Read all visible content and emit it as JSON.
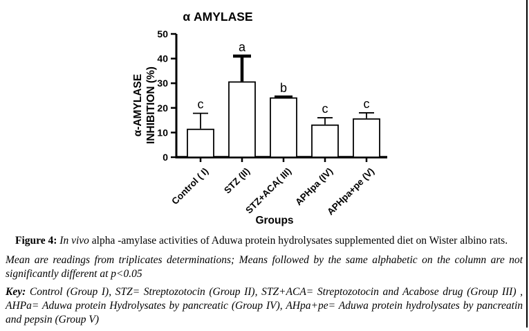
{
  "colors": {
    "background": "#ffffff",
    "axis": "#000000",
    "bar_fill": "#ffffff",
    "bar_stroke": "#000000",
    "text": "#000000"
  },
  "chart_data": {
    "type": "bar",
    "title": "α AMYLASE",
    "xlabel": "Groups",
    "ylabel_line1": "α-AMYLASE",
    "ylabel_line2": "INHIBITION (%)",
    "categories": [
      "Control ( I)",
      "STZ (II)",
      "STZ+ACA( III)",
      "APHpa (IV)",
      "APHpa+pe (V)"
    ],
    "values": [
      11.3,
      30.5,
      24.0,
      13.0,
      15.5
    ],
    "errors_up": [
      6.5,
      10.5,
      0.4,
      3.0,
      2.5
    ],
    "error_thick": [
      false,
      true,
      true,
      false,
      false
    ],
    "sig_letters": [
      "c",
      "a",
      "b",
      "c",
      "c"
    ],
    "ylim": [
      0,
      50
    ],
    "yticks": [
      0,
      10,
      20,
      30,
      40,
      50
    ],
    "grid": false,
    "legend": "none",
    "bar_fill": "#ffffff",
    "bar_stroke": "#000000"
  },
  "caption": {
    "figure_label": "Figure 4:",
    "figure_title_italic": " In vivo",
    "figure_title_rest": " alpha -amylase activities of Aduwa protein hydrolysates supplemented diet on Wister albino rats.",
    "note": "Mean are readings from triplicates determinations; Means followed by the same alphabetic on the column are not significantly different at p<0.05",
    "key_label": "Key:",
    "key_text": " Control (Group I), STZ= Streptozotocin (Group II), STZ+ACA= Streptozotocin and Acabose drug (Group III) , AHPa= Aduwa protein Hydrolysates by pancreatic (Group IV), AHpa+pe= Aduwa protein hydrolysates by pancreatin and pepsin (Group V)"
  }
}
